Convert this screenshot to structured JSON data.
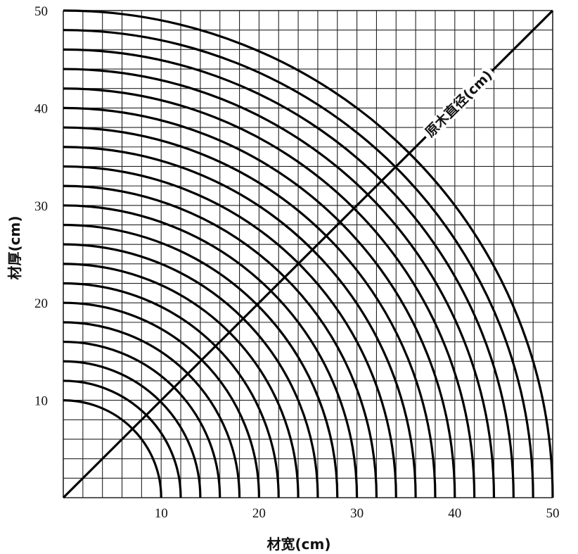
{
  "chart_data": {
    "type": "line",
    "title": "",
    "xlabel": "材宽(cm)",
    "ylabel": "材厚(cm)",
    "xlim": [
      0,
      50
    ],
    "ylim": [
      0,
      50
    ],
    "grid": true,
    "grid_step": 2,
    "x_ticks": [
      10,
      20,
      30,
      40,
      50
    ],
    "y_ticks": [
      10,
      20,
      30,
      40,
      50
    ],
    "x_tick_labels": [
      "10",
      "20",
      "30",
      "40",
      "50"
    ],
    "y_tick_labels": [
      "10",
      "20",
      "30",
      "40",
      "50"
    ],
    "curves": "quarter circles x^2 + y^2 = r^2",
    "radii": [
      10,
      12,
      14,
      16,
      18,
      20,
      22,
      24,
      26,
      28,
      30,
      32,
      34,
      36,
      38,
      40,
      42,
      44,
      46,
      48,
      50
    ],
    "diagonal": {
      "from": [
        0,
        0
      ],
      "to": [
        50,
        50
      ],
      "label": "原木直径(cm)"
    }
  }
}
